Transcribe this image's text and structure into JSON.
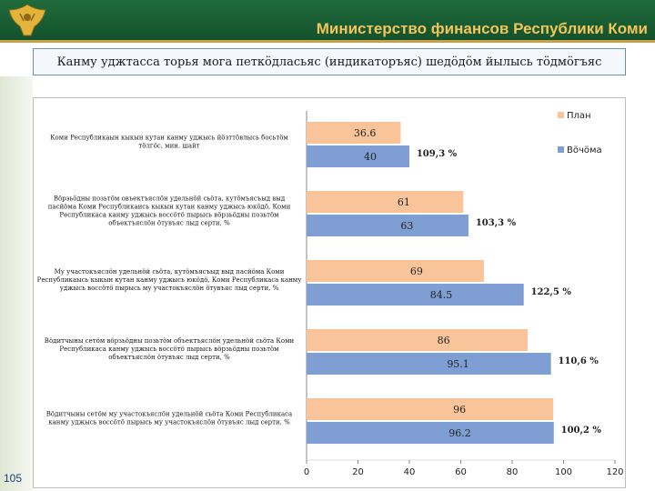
{
  "header": {
    "ministry": "Министерство финансов Республики Коми"
  },
  "subtitle": "Канму уджтасса торья мога петкӧдласьяс (индикаторъяс) шедӧдӧм йылысь тӧдмӧгъяс",
  "page_number": "105",
  "colors": {
    "plan": "#f9c49a",
    "fact": "#7f9fd4",
    "header_green": "#1f6b3b",
    "ministry_text": "#f3c45a"
  },
  "icons": {
    "emblem": "coat-of-arms-icon"
  },
  "chart_data": {
    "type": "bar",
    "orientation": "horizontal",
    "xlim": [
      0,
      120
    ],
    "ticks": [
      0,
      20,
      40,
      60,
      80,
      100,
      120
    ],
    "grid": false,
    "legend_position": "top-right",
    "categories": [
      [
        "Коми Республикаын кыкын кутан канму уджысь йӧзттӧвлысь босьтӧм",
        "тӧлгӧс, мин. шайт"
      ],
      [
        "Вӧрзьӧдны позьтӧм овъектъяслӧн удельнӧй сьӧта, кутӧмъясъыд выд",
        "пасйӧма Коми Республикаись кыкын кутан канму уджысь юкӧдӧ, Коми",
        "Республикаса канму уджысь воссӧтӧ пырысь вӧрзьӧдны позьтӧм",
        "объектъяслӧн ӧтувъяс лыд серти, %"
      ],
      [
        "Му участокъяслӧн удельнӧй сьӧта, кутӧмъясъыд выд пасйӧма Коми",
        "Республикаысь кыкын кутан канму уджысь юкӧдӧ, Коми Республикаса канму",
        "уджысь воссӧтӧ пырысь му участокъяслӧн ӧтувъяс лыд серти, %"
      ],
      [
        "Вӧдитчыны сетӧм вӧрзьӧдны позьтӧм объектъяслӧн удельнӧй сьӧта Коми",
        "Республикаса канму уджысь воссӧтӧ пырысь вӧрзьӧдны позьтӧм",
        "объектъяслӧн ӧтувъяс лыд серти, %"
      ],
      [
        "Вӧдитчыны сетӧм му участокъяслӧн удельнӧй сьӧта Коми Республикаса",
        "канму уджысь воссӧтӧ пырысь му участокъяслӧн ӧтувъяс лыд серти, %"
      ]
    ],
    "series": [
      {
        "name": "План",
        "values": [
          36.6,
          61,
          69,
          86,
          96
        ]
      },
      {
        "name": "Вӧчӧма",
        "values": [
          40,
          63,
          84.5,
          95.1,
          96.2
        ]
      }
    ],
    "plan_labels": [
      "36.6",
      "61",
      "69",
      "86",
      "96"
    ],
    "fact_labels": [
      "40",
      "63",
      "84.5",
      "95.1",
      "96.2"
    ],
    "percent_labels": [
      "109,3 %",
      "103,3 %",
      "122,5 %",
      "110,6 %",
      "100,2 %"
    ]
  }
}
